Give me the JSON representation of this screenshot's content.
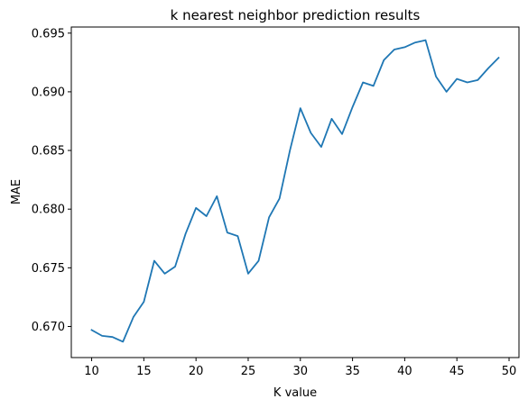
{
  "chart_data": {
    "type": "line",
    "title": "k nearest neighbor prediction results",
    "xlabel": "K value",
    "ylabel": "MAE",
    "xlim": [
      8.05,
      50.95
    ],
    "ylim": [
      0.66735,
      0.69552
    ],
    "xticks": [
      10,
      15,
      20,
      25,
      30,
      35,
      40,
      45,
      50
    ],
    "yticks": [
      0.67,
      0.675,
      0.68,
      0.685,
      0.69,
      0.695
    ],
    "ytick_labels": [
      "0.670",
      "0.675",
      "0.680",
      "0.685",
      "0.690",
      "0.695"
    ],
    "grid": false,
    "line_color": "#1f77b4",
    "series": [
      {
        "x": [
          10,
          11,
          12,
          13,
          14,
          15,
          16,
          17,
          18,
          19,
          20,
          21,
          22,
          23,
          24,
          25,
          26,
          27,
          28,
          29,
          30,
          31,
          32,
          33,
          34,
          35,
          36,
          37,
          38,
          39,
          40,
          41,
          42,
          43,
          44,
          45,
          46,
          47,
          48,
          49
        ],
        "values": [
          0.6697,
          0.6692,
          0.6691,
          0.6687,
          0.6708,
          0.6721,
          0.6756,
          0.6745,
          0.6751,
          0.6779,
          0.6801,
          0.6794,
          0.6811,
          0.678,
          0.6777,
          0.6745,
          0.6756,
          0.6793,
          0.6809,
          0.685,
          0.6886,
          0.6865,
          0.6853,
          0.6877,
          0.6864,
          0.6887,
          0.6908,
          0.6905,
          0.6927,
          0.6936,
          0.6938,
          0.6942,
          0.6944,
          0.6913,
          0.69,
          0.6911,
          0.6908,
          0.691,
          0.692,
          0.6929
        ]
      }
    ]
  }
}
